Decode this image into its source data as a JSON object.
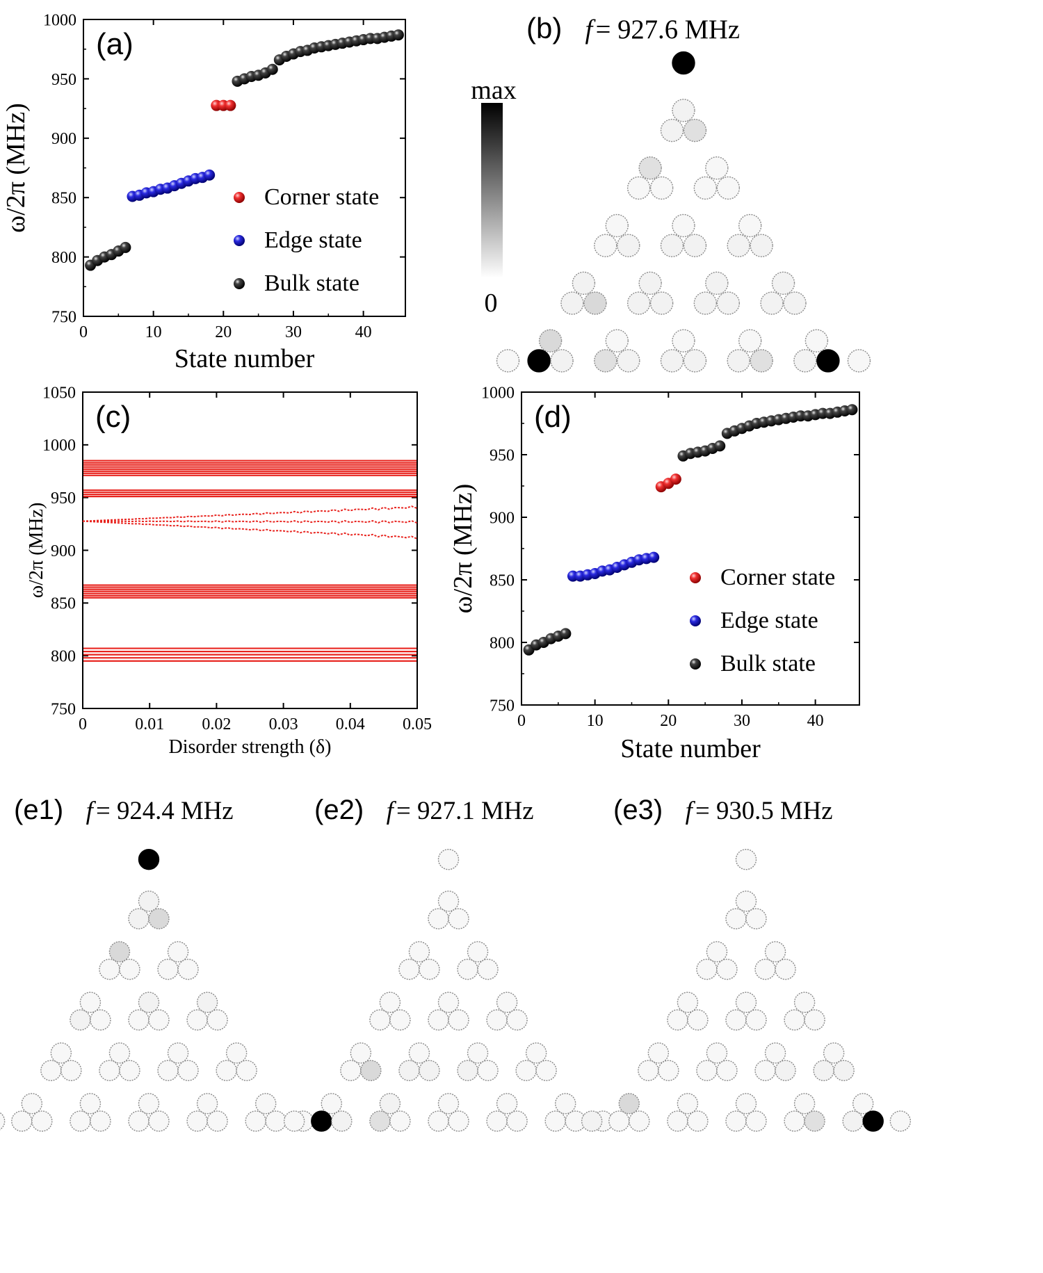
{
  "colors": {
    "corner": "#e52020",
    "edge": "#1a1ad6",
    "bulk": "#1a1a1a",
    "band": "#e8241f",
    "axis": "#000000"
  },
  "colorbar": {
    "max_label": "max",
    "min_label": "0"
  },
  "chart_data": [
    {
      "id": "a",
      "panel_label": "(a)",
      "type": "scatter",
      "xlabel": "State number",
      "ylabel": "ω/2π (MHz)",
      "xlim": [
        0,
        46
      ],
      "ylim": [
        750,
        1000
      ],
      "xticks": [
        0,
        10,
        20,
        30,
        40
      ],
      "yticks": [
        750,
        800,
        850,
        900,
        950,
        1000
      ],
      "legend": [
        "Corner state",
        "Edge state",
        "Bulk state"
      ],
      "legend_position": "lower-right",
      "series": [
        {
          "name": "Bulk state",
          "color": "bulk",
          "x": [
            1,
            2,
            3,
            4,
            5,
            6
          ],
          "y": [
            793,
            797,
            800,
            802,
            805,
            808
          ]
        },
        {
          "name": "Edge state",
          "color": "edge",
          "x": [
            7,
            8,
            9,
            10,
            11,
            12,
            13,
            14,
            15,
            16,
            17,
            18
          ],
          "y": [
            851,
            852,
            854,
            855,
            857,
            858,
            860,
            862,
            864,
            866,
            867,
            869
          ]
        },
        {
          "name": "Corner state",
          "color": "corner",
          "x": [
            19,
            20,
            21
          ],
          "y": [
            927.6,
            927.6,
            927.6
          ]
        },
        {
          "name": "Bulk state",
          "color": "bulk",
          "x": [
            22,
            23,
            24,
            25,
            26,
            27,
            28,
            29,
            30,
            31,
            32,
            33,
            34,
            35,
            36,
            37,
            38,
            39,
            40,
            41,
            42,
            43,
            44,
            45
          ],
          "y": [
            948,
            950,
            952,
            953,
            955,
            958,
            966,
            969,
            971,
            973,
            974,
            976,
            977,
            978,
            979,
            980,
            981,
            982,
            983,
            984,
            984,
            985,
            986,
            987
          ]
        }
      ]
    },
    {
      "id": "c",
      "panel_label": "(c)",
      "type": "line",
      "xlabel": "Disorder strength (δ)",
      "ylabel": "ω/2π (MHz)",
      "xlim": [
        0,
        0.05
      ],
      "ylim": [
        750,
        1050
      ],
      "xticks": [
        0,
        0.01,
        0.02,
        0.03,
        0.04,
        0.05
      ],
      "yticks": [
        750,
        800,
        850,
        900,
        950,
        1000,
        1050
      ],
      "flat_bands": [
        795,
        798,
        801,
        804,
        807,
        855,
        857,
        859,
        861,
        863,
        865,
        867,
        951,
        953,
        955,
        957,
        971,
        973,
        975,
        977,
        979,
        981,
        983,
        985
      ],
      "corner_branches": [
        {
          "start": 927.6,
          "end": 941
        },
        {
          "start": 927.6,
          "end": 927
        },
        {
          "start": 927.6,
          "end": 912
        }
      ]
    },
    {
      "id": "d",
      "panel_label": "(d)",
      "type": "scatter",
      "xlabel": "State number",
      "ylabel": "ω/2π (MHz)",
      "xlim": [
        0,
        46
      ],
      "ylim": [
        750,
        1000
      ],
      "xticks": [
        0,
        10,
        20,
        30,
        40
      ],
      "yticks": [
        750,
        800,
        850,
        900,
        950,
        1000
      ],
      "legend": [
        "Corner state",
        "Edge state",
        "Bulk state"
      ],
      "legend_position": "lower-right",
      "series": [
        {
          "name": "Bulk state",
          "color": "bulk",
          "x": [
            1,
            2,
            3,
            4,
            5,
            6
          ],
          "y": [
            794,
            798,
            800,
            803,
            805,
            807
          ]
        },
        {
          "name": "Edge state",
          "color": "edge",
          "x": [
            7,
            8,
            9,
            10,
            11,
            12,
            13,
            14,
            15,
            16,
            17,
            18
          ],
          "y": [
            853,
            853,
            854,
            855,
            857,
            858,
            860,
            862,
            864,
            866,
            867,
            868
          ]
        },
        {
          "name": "Corner state",
          "color": "corner",
          "x": [
            19,
            20,
            21
          ],
          "y": [
            924.4,
            927.1,
            930.5
          ]
        },
        {
          "name": "Bulk state",
          "color": "bulk",
          "x": [
            22,
            23,
            24,
            25,
            26,
            27,
            28,
            29,
            30,
            31,
            32,
            33,
            34,
            35,
            36,
            37,
            38,
            39,
            40,
            41,
            42,
            43,
            44,
            45
          ],
          "y": [
            949,
            951,
            952,
            953,
            955,
            957,
            967,
            969,
            971,
            973,
            975,
            976,
            977,
            978,
            979,
            980,
            981,
            981,
            982,
            983,
            983,
            984,
            985,
            986
          ]
        }
      ]
    }
  ],
  "field_maps": [
    {
      "id": "b",
      "panel_label": "(b)",
      "f_symbol": "f",
      "freq_text": "= 927.6 MHz",
      "intensity": [
        1.0,
        0.05,
        0.05,
        0.12,
        0.12,
        0.03,
        0.03,
        0.03,
        0.03,
        0.03,
        0.03,
        0.03,
        0.03,
        0.03,
        0.05,
        0.05,
        0.05,
        0.05,
        0.05,
        0.05,
        0.05,
        0.05,
        0.05,
        0.05,
        0.15,
        0.05,
        0.05,
        0.05,
        0.05,
        0.05,
        0.05,
        0.15,
        0.03,
        0.03,
        0.03,
        0.03,
        0.03,
        1.0,
        0.05,
        0.12,
        0.05,
        0.05,
        0.05,
        0.05,
        0.12,
        0.05,
        1.0
      ]
    },
    {
      "id": "e1",
      "panel_label": "(e1)",
      "f_symbol": "f",
      "freq_text": "= 924.4 MHz",
      "intensity": [
        1.0,
        0.05,
        0.05,
        0.15,
        0.15,
        0.03,
        0.03,
        0.03,
        0.03,
        0.03,
        0.03,
        0.05,
        0.05,
        0.05,
        0.03,
        0.03,
        0.03,
        0.03,
        0.03,
        0.03,
        0.03,
        0.03,
        0.03,
        0.03,
        0.03,
        0.03,
        0.03,
        0.03,
        0.03,
        0.03,
        0.03,
        0.03,
        0.03,
        0.03,
        0.03,
        0.03,
        0.03,
        0.03,
        0.03,
        0.03,
        0.03,
        0.03,
        0.03,
        0.03,
        0.03,
        0.03,
        0.03
      ]
    },
    {
      "id": "e2",
      "panel_label": "(e2)",
      "f_symbol": "f",
      "freq_text": "= 927.1 MHz",
      "intensity": [
        0.03,
        0.03,
        0.03,
        0.03,
        0.03,
        0.03,
        0.03,
        0.03,
        0.03,
        0.03,
        0.03,
        0.03,
        0.03,
        0.03,
        0.03,
        0.03,
        0.03,
        0.03,
        0.03,
        0.03,
        0.03,
        0.03,
        0.03,
        0.03,
        0.15,
        0.05,
        0.05,
        0.05,
        0.03,
        0.03,
        0.03,
        0.03,
        0.05,
        0.03,
        0.03,
        0.03,
        0.03,
        1.0,
        0.05,
        0.12,
        0.03,
        0.03,
        0.03,
        0.03,
        0.03,
        0.03,
        0.03
      ]
    },
    {
      "id": "e3",
      "panel_label": "(e3)",
      "f_symbol": "f",
      "freq_text": "= 930.5 MHz",
      "intensity": [
        0.03,
        0.03,
        0.03,
        0.03,
        0.03,
        0.03,
        0.03,
        0.03,
        0.03,
        0.03,
        0.03,
        0.03,
        0.03,
        0.03,
        0.03,
        0.03,
        0.03,
        0.03,
        0.03,
        0.03,
        0.03,
        0.03,
        0.03,
        0.03,
        0.03,
        0.03,
        0.03,
        0.03,
        0.05,
        0.05,
        0.05,
        0.15,
        0.03,
        0.03,
        0.03,
        0.03,
        0.05,
        0.03,
        0.03,
        0.03,
        0.03,
        0.03,
        0.03,
        0.03,
        0.12,
        0.05,
        1.0
      ]
    }
  ]
}
